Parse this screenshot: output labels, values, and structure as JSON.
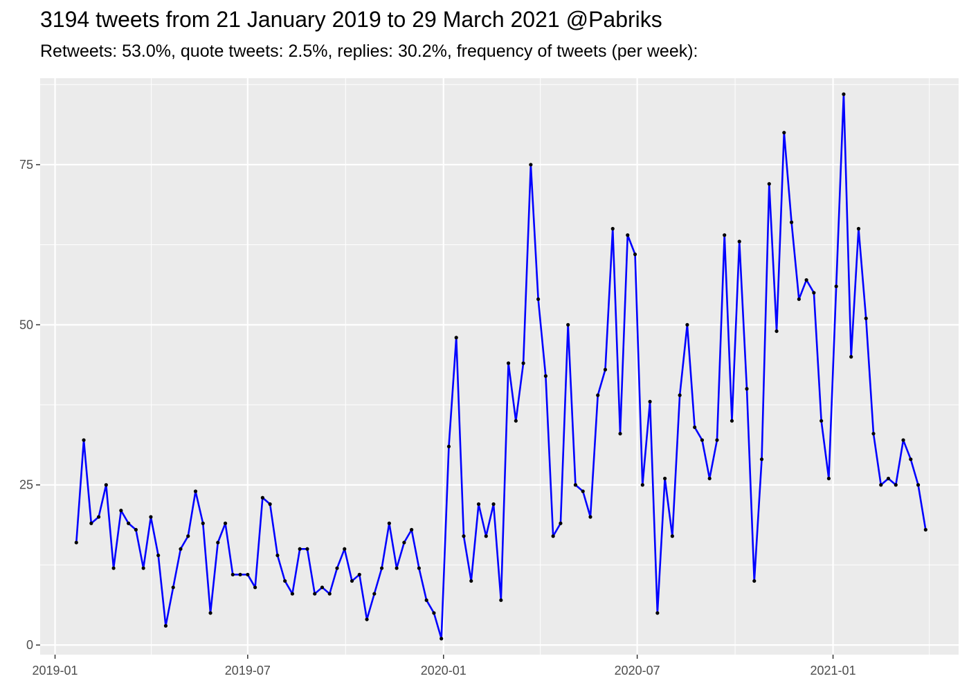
{
  "chart_data": {
    "type": "line",
    "title": "3194 tweets from 21 January 2019 to 29 March 2021 @Pabriks",
    "subtitle": "Retweets: 53.0%, quote tweets: 2.5%, replies: 30.2%, frequency of tweets (per week):",
    "xlabel": "",
    "ylabel": "",
    "x_ticks": [
      "2019-01",
      "2019-07",
      "2020-01",
      "2020-07",
      "2021-01"
    ],
    "x_tick_dates": [
      "2019-01-01",
      "2019-07-01",
      "2020-01-01",
      "2020-07-01",
      "2021-01-01"
    ],
    "y_ticks": [
      0,
      25,
      50,
      75
    ],
    "xlim": [
      "2018-12-18",
      "2021-04-29"
    ],
    "ylim": [
      -1.5,
      88.5
    ],
    "grid": true,
    "line_color": "#0000ff",
    "point_color": "#000000",
    "panel_background": "#ebebeb",
    "grid_color": "#ffffff",
    "series": [
      {
        "x_start": "2019-01-21",
        "step_days": 7,
        "values": [
          16,
          32,
          19,
          20,
          25,
          12,
          21,
          19,
          18,
          12,
          20,
          14,
          3,
          9,
          15,
          17,
          24,
          19,
          5,
          16,
          19,
          11,
          11,
          11,
          9,
          23,
          22,
          14,
          10,
          8,
          15,
          15,
          8,
          9,
          8,
          12,
          15,
          10,
          11,
          4,
          8,
          12,
          19,
          12,
          16,
          18,
          12,
          7,
          5,
          1,
          31,
          48,
          17,
          10,
          22,
          17,
          22,
          7,
          44,
          35,
          44,
          75,
          54,
          42,
          17,
          19,
          50,
          25,
          24,
          20,
          39,
          43,
          65,
          33,
          64,
          61,
          25,
          38,
          5,
          26,
          17,
          39,
          50,
          34,
          32,
          26,
          32,
          64,
          35,
          63,
          40,
          10,
          29,
          72,
          49,
          80,
          66,
          54,
          57,
          55,
          35,
          26,
          56,
          86,
          45,
          65,
          51,
          33,
          25,
          26,
          25,
          32,
          29,
          25,
          18
        ]
      }
    ]
  }
}
